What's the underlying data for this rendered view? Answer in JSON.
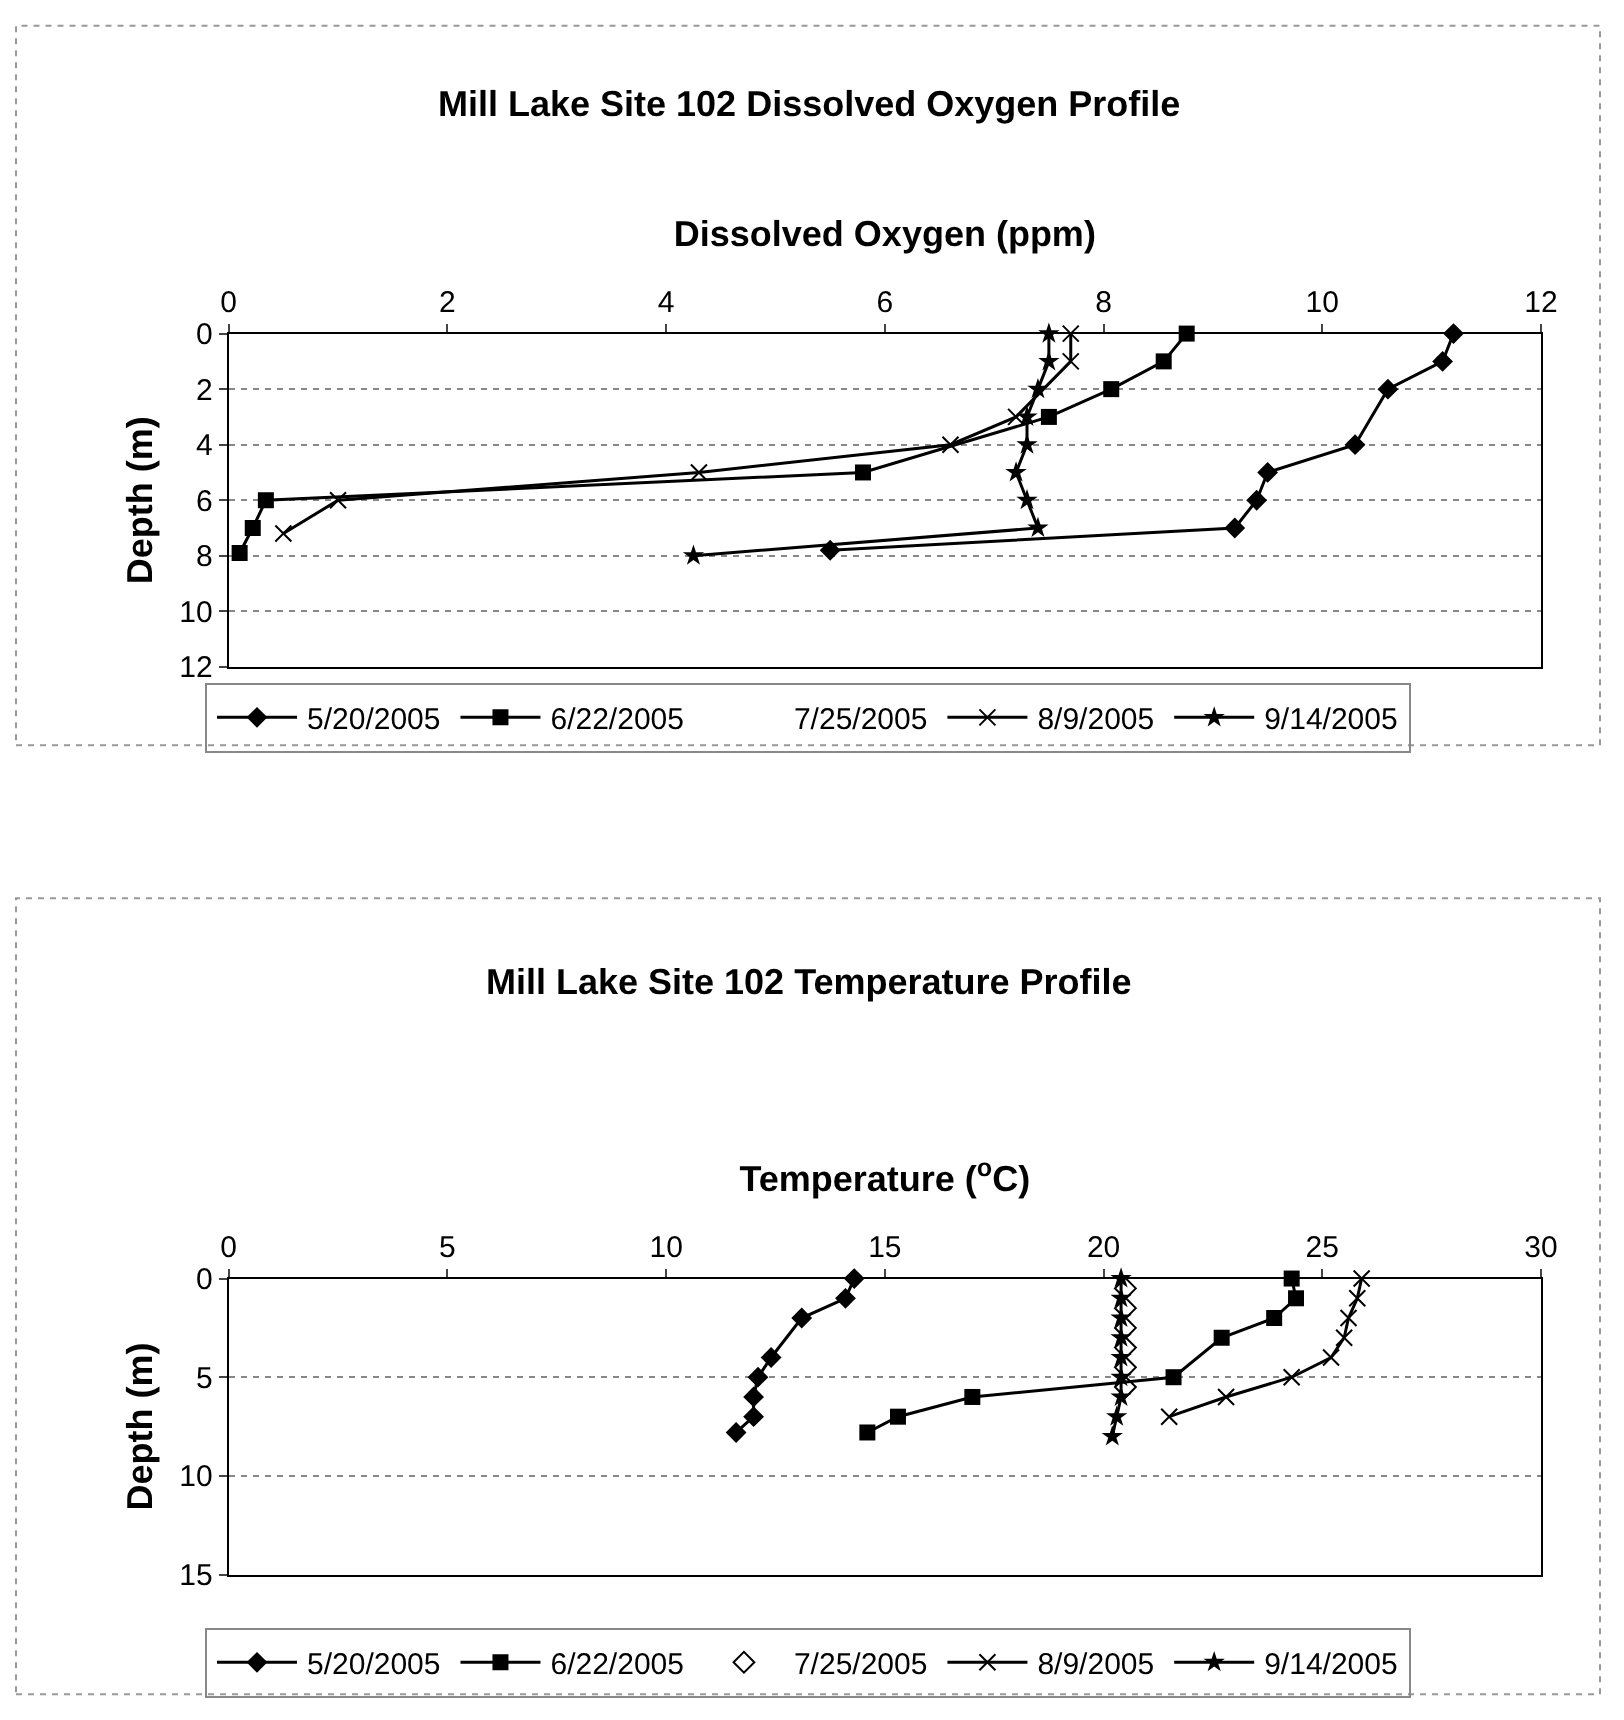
{
  "chart_data": [
    {
      "type": "line",
      "title": "Mill Lake Site 102 Dissolved Oxygen Profile",
      "xlabel": "Dissolved Oxygen (ppm)",
      "ylabel": "Depth (m)",
      "xlim": [
        0,
        12
      ],
      "xticks": [
        0,
        2,
        4,
        6,
        8,
        10,
        12
      ],
      "ylim": [
        12,
        0
      ],
      "yticks": [
        0,
        2,
        4,
        6,
        8,
        10,
        12
      ],
      "grid": "y",
      "legend": "bottom",
      "line_style": "solid",
      "series": [
        {
          "name": "5/20/2005",
          "color": "#000000",
          "marker": "diamond",
          "x": [
            11.2,
            11.1,
            10.6,
            10.3,
            9.5,
            9.4,
            9.2,
            5.5
          ],
          "values": [
            0,
            1,
            2,
            4,
            5,
            6,
            7,
            7.8
          ]
        },
        {
          "name": "6/22/2005",
          "color": "#000000",
          "marker": "square",
          "x": [
            8.76,
            8.55,
            8.07,
            7.5,
            5.8,
            0.34,
            0.22,
            0.1
          ],
          "values": [
            0,
            1,
            2,
            3,
            5,
            6,
            7,
            7.9
          ]
        },
        {
          "name": "7/25/2005",
          "marker": "none",
          "x": [
            null
          ],
          "values": [
            null
          ]
        },
        {
          "name": "8/9/2005",
          "color": "#000000",
          "marker": "cross",
          "x": [
            7.7,
            7.7,
            7.2,
            6.6,
            4.3,
            1.0,
            0.5
          ],
          "values": [
            0,
            1,
            3,
            4,
            5,
            6,
            7.2
          ]
        },
        {
          "name": "9/14/2005",
          "color": "#000000",
          "marker": "star",
          "x": [
            7.5,
            7.5,
            7.4,
            7.3,
            7.3,
            7.2,
            7.3,
            7.4,
            4.25
          ],
          "values": [
            0,
            1,
            2,
            3,
            4,
            5,
            6,
            7,
            8
          ]
        }
      ]
    },
    {
      "type": "line",
      "title": "Mill Lake Site 102 Temperature Profile",
      "xlabel": "Temperature ($^{o}$C)",
      "ylabel": "Depth (m)",
      "xlim": [
        0,
        30
      ],
      "xticks": [
        0,
        5,
        10,
        15,
        20,
        25,
        30
      ],
      "ylim": [
        15,
        0
      ],
      "yticks": [
        0,
        5,
        10,
        15
      ],
      "grid": "y",
      "legend": "bottom",
      "line_style": "solid",
      "series": [
        {
          "name": "5/20/2005",
          "color": "#000000",
          "marker": "diamond",
          "x": [
            14.3,
            14.1,
            13.1,
            12.4,
            12.1,
            12.0,
            12.0,
            11.6
          ],
          "values": [
            0,
            1,
            2,
            4,
            5,
            6,
            7,
            7.8
          ]
        },
        {
          "name": "6/22/2005",
          "color": "#000000",
          "marker": "square",
          "x": [
            24.3,
            24.4,
            23.9,
            22.7,
            21.6,
            17.0,
            15.3,
            14.6
          ],
          "values": [
            0,
            1,
            2,
            3,
            5,
            6,
            7,
            7.8
          ]
        },
        {
          "name": "7/25/2005",
          "type": "scatter",
          "color": "#000000",
          "marker": "diamond",
          "x": [
            20.5,
            20.5,
            20.5,
            20.5,
            20.5,
            20.5
          ],
          "values": [
            0.5,
            1.5,
            2.5,
            3.5,
            4.5,
            5.5
          ]
        },
        {
          "name": "8/9/2005",
          "color": "#000000",
          "marker": "cross",
          "x": [
            25.9,
            25.8,
            25.6,
            25.5,
            25.2,
            24.3,
            22.8,
            21.5
          ],
          "values": [
            0,
            1,
            2,
            3,
            4,
            5,
            6,
            7
          ]
        },
        {
          "name": "9/14/2005",
          "color": "#000000",
          "marker": "star",
          "x": [
            20.4,
            20.4,
            20.4,
            20.4,
            20.4,
            20.4,
            20.4,
            20.3,
            20.2
          ],
          "values": [
            0,
            1,
            2,
            3,
            4,
            5,
            6,
            7,
            8
          ]
        }
      ]
    }
  ]
}
